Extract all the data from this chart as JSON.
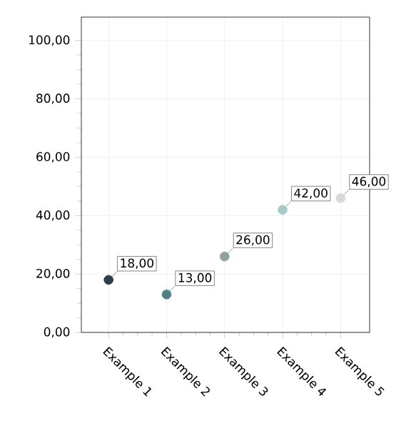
{
  "chart_data": {
    "type": "scatter",
    "categories": [
      "Example 1",
      "Example 2",
      "Example 3",
      "Example 4",
      "Example 5"
    ],
    "values": [
      18,
      13,
      26,
      42,
      46
    ],
    "value_labels": [
      "18,00",
      "13,00",
      "26,00",
      "42,00",
      "46,00"
    ],
    "colors": [
      "#2e3e4e",
      "#4f8282",
      "#8fa1a1",
      "#a9c9c9",
      "#d9d9d9"
    ],
    "ylim": [
      0,
      108
    ],
    "yticks": [
      {
        "value": 0,
        "label": "0,00"
      },
      {
        "value": 20,
        "label": "20,00"
      },
      {
        "value": 40,
        "label": "40,00"
      },
      {
        "value": 60,
        "label": "60,00"
      },
      {
        "value": 80,
        "label": "80,00"
      },
      {
        "value": 100,
        "label": "100,00"
      }
    ],
    "grid": true,
    "marker": "circle"
  }
}
